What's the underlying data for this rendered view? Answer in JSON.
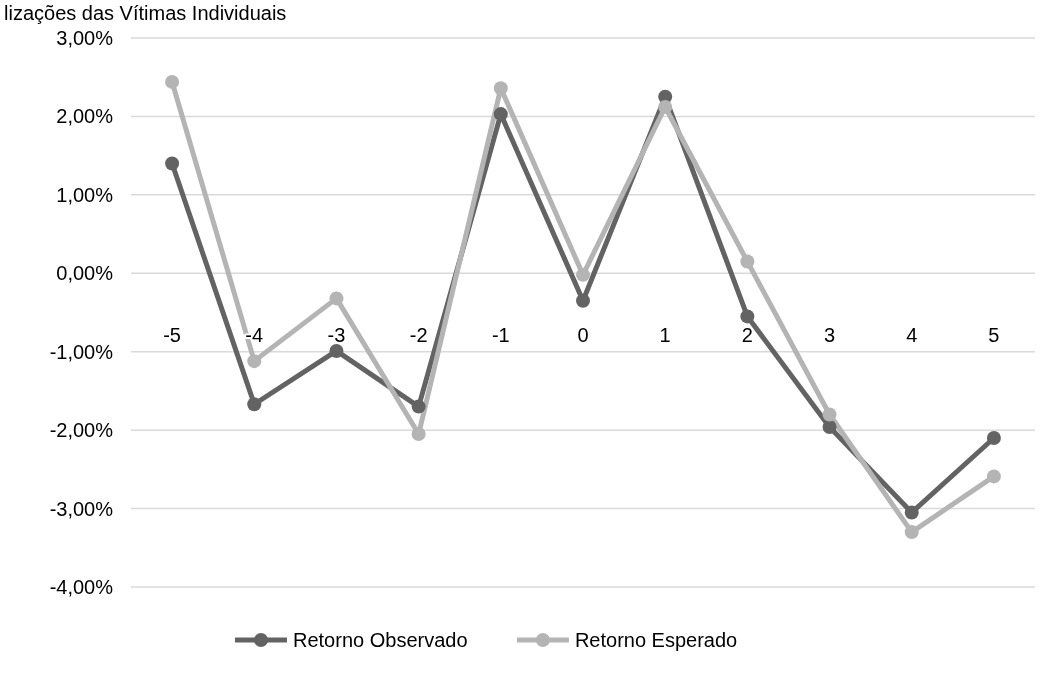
{
  "chart_data": {
    "type": "line",
    "title": "lizações das Vítimas Individuais",
    "categories": [
      "-5",
      "-4",
      "-3",
      "-2",
      "-1",
      "0",
      "1",
      "2",
      "3",
      "4",
      "5"
    ],
    "series": [
      {
        "name": "Retorno Observado",
        "color": "#636363",
        "values": [
          1.4,
          -1.67,
          -0.99,
          -1.7,
          2.03,
          -0.35,
          2.25,
          -0.55,
          -1.96,
          -3.05,
          -2.1
        ]
      },
      {
        "name": "Retorno Esperado",
        "color": "#b4b4b4",
        "values": [
          2.44,
          -1.12,
          -0.32,
          -2.05,
          2.36,
          -0.02,
          2.12,
          0.15,
          -1.8,
          -3.3,
          -2.59
        ]
      }
    ],
    "ylim": [
      -4,
      3
    ],
    "yticks": [
      {
        "value": -4,
        "label": "-4,00%"
      },
      {
        "value": -3,
        "label": "-3,00%"
      },
      {
        "value": -2,
        "label": "-2,00%"
      },
      {
        "value": -1,
        "label": "-1,00%"
      },
      {
        "value": 0,
        "label": "0,00%"
      },
      {
        "value": 1,
        "label": "1,00%"
      },
      {
        "value": 2,
        "label": "2,00%"
      },
      {
        "value": 3,
        "label": "3,00%"
      }
    ],
    "grid": "y",
    "legend": "bottom",
    "marker": "circle",
    "line_style": "solid"
  }
}
